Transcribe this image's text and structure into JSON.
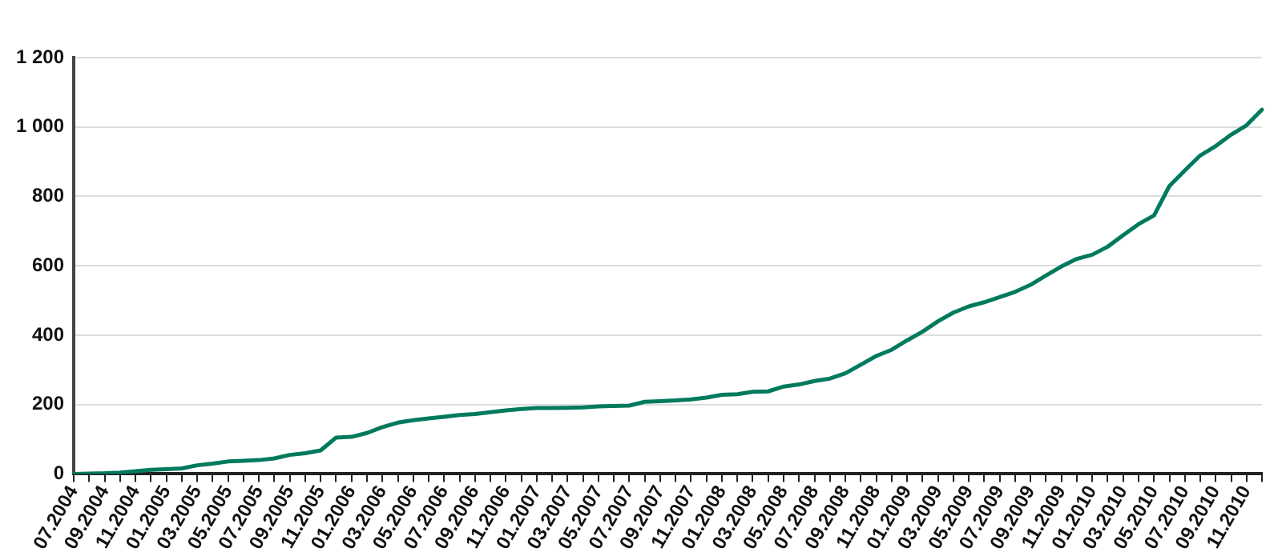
{
  "chart_data": {
    "type": "line",
    "categories": [
      "07.2004",
      null,
      "09.2004",
      null,
      "11.2004",
      null,
      "01.2005",
      null,
      "03.2005",
      null,
      "05.2005",
      null,
      "07.2005",
      null,
      "09.2005",
      null,
      "11.2005",
      null,
      "01.2006",
      null,
      "03.2006",
      null,
      "05.2006",
      null,
      "07.2006",
      null,
      "09.2006",
      null,
      "11.2006",
      null,
      "01.2007",
      null,
      "03.2007",
      null,
      "05.2007",
      null,
      "07.2007",
      null,
      "09.2007",
      null,
      "11.2007",
      null,
      "01.2008",
      null,
      "03.2008",
      null,
      "05.2008",
      null,
      "07.2008",
      null,
      "09.2008",
      null,
      "11.2008",
      null,
      "01.2009",
      null,
      "03.2009",
      null,
      "05.2009",
      null,
      "07.2009",
      null,
      "09.2009",
      null,
      "11.2009",
      null,
      "01.2010",
      null,
      "03.2010",
      null,
      "05.2010",
      null,
      "07.2010",
      null,
      "09.2010",
      null,
      "11.2010",
      null
    ],
    "series": [
      {
        "color": "#007a5e",
        "values": [
          0,
          1,
          2,
          4,
          8,
          12,
          14,
          16,
          25,
          30,
          36,
          38,
          40,
          45,
          55,
          60,
          68,
          105,
          107,
          118,
          135,
          148,
          155,
          160,
          165,
          170,
          173,
          178,
          183,
          187,
          190,
          190,
          191,
          192,
          195,
          196,
          197,
          208,
          210,
          212,
          215,
          220,
          228,
          230,
          237,
          238,
          252,
          258,
          268,
          275,
          290,
          315,
          340,
          358,
          385,
          410,
          440,
          465,
          483,
          495,
          510,
          525,
          545,
          572,
          598,
          620,
          632,
          655,
          688,
          720,
          745,
          830,
          875,
          918,
          945,
          978,
          1005,
          1050
        ]
      }
    ],
    "ylim": [
      0,
      1200
    ],
    "yticks": [
      0,
      200,
      400,
      600,
      800,
      {
        "value": 1000,
        "label": "1 000"
      },
      {
        "value": 1200,
        "label": "1 200"
      }
    ],
    "grid": "y",
    "legend": false,
    "marker": "none",
    "line_style": "solid"
  }
}
